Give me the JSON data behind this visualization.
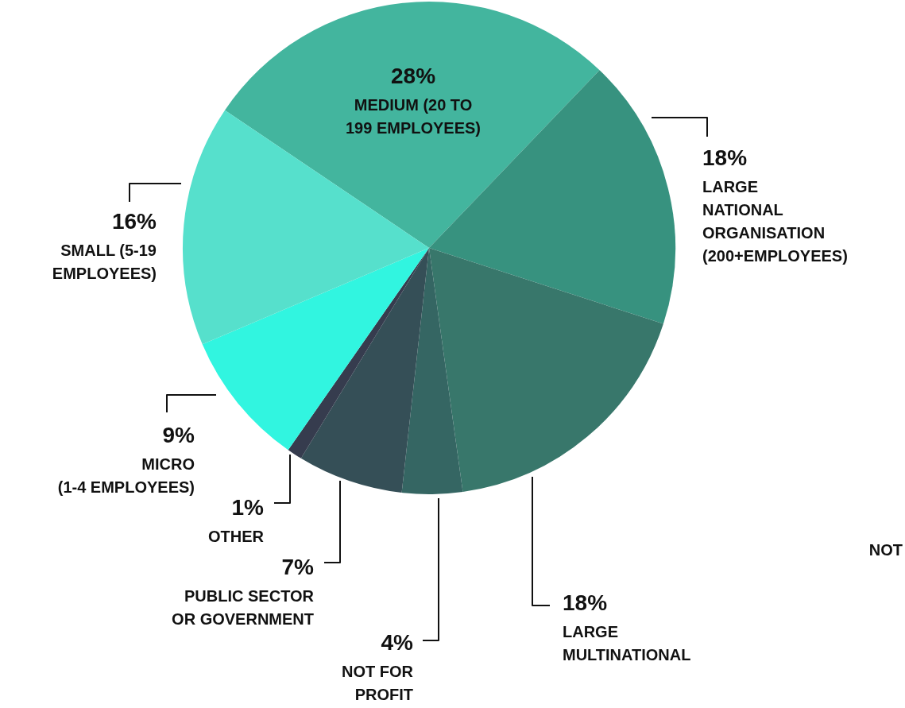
{
  "chart_data": {
    "type": "pie",
    "categories": [
      "MEDIUM (20 TO\n199 EMPLOYEES)",
      "LARGE\nNATIONAL\nORGANISATION\n(200+EMPLOYEES)",
      "LARGE\nMULTINATIONAL",
      "NOT FOR\nPROFIT",
      "PUBLIC SECTOR\nOR GOVERNMENT",
      "OTHER",
      "MICRO\n(1-4 EMPLOYEES)",
      "SMALL (5-19\nEMPLOYEES)"
    ],
    "values": [
      28,
      18,
      18,
      4,
      7,
      1,
      9,
      16
    ],
    "value_labels": [
      "28%",
      "18%",
      "18%",
      "4%",
      "7%",
      "1%",
      "9%",
      "16%"
    ],
    "colors": [
      "#43b59e",
      "#37927f",
      "#38776b",
      "#356663",
      "#354f57",
      "#363c4e",
      "#31f5e0",
      "#56e0cc"
    ],
    "legend": false,
    "annotations": [
      "NOT"
    ]
  }
}
